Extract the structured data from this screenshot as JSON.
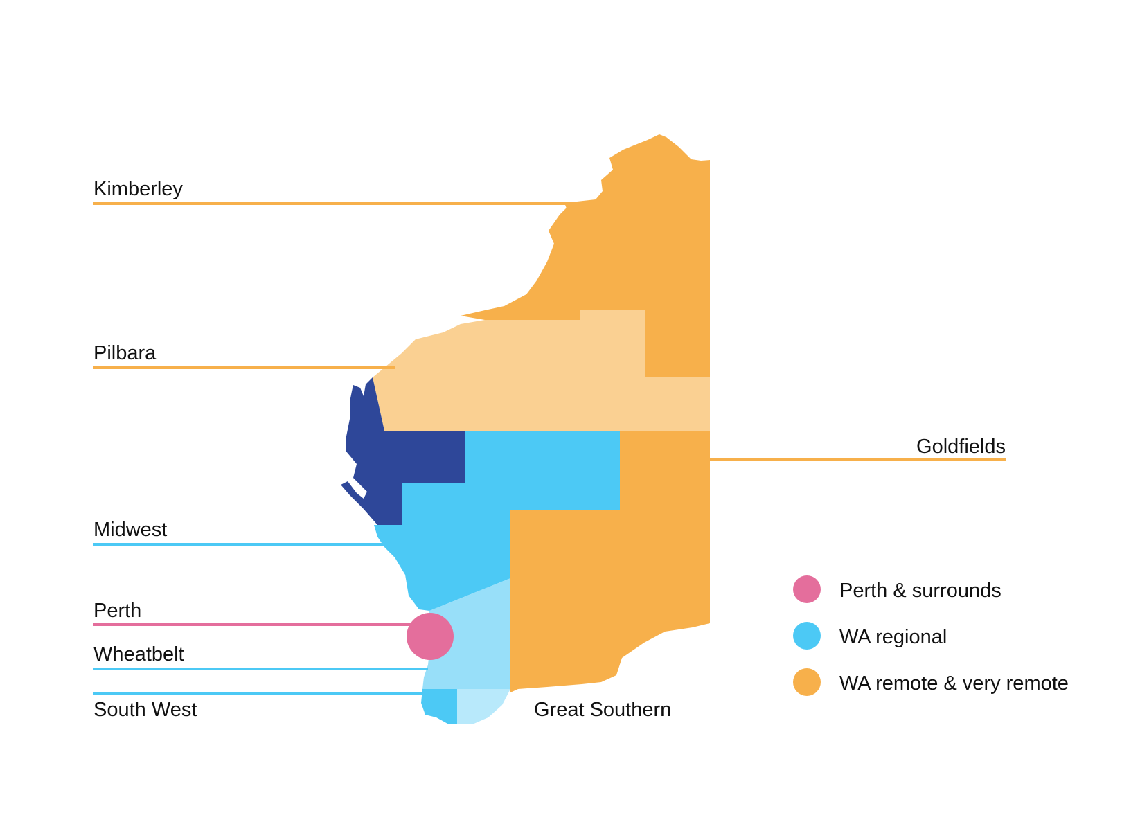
{
  "map": {
    "regions": [
      {
        "id": "kimberley",
        "label": "Kimberley",
        "category": "remote"
      },
      {
        "id": "pilbara",
        "label": "Pilbara",
        "category": "remote"
      },
      {
        "id": "goldfields",
        "label": "Goldfields",
        "category": "remote"
      },
      {
        "id": "midwest",
        "label": "Midwest",
        "category": "regional"
      },
      {
        "id": "perth",
        "label": "Perth",
        "category": "perth"
      },
      {
        "id": "wheatbelt",
        "label": "Wheatbelt",
        "category": "regional"
      },
      {
        "id": "south_west",
        "label": "South West",
        "category": "regional"
      },
      {
        "id": "great_southern",
        "label": "Great Southern",
        "category": "regional"
      }
    ]
  },
  "legend": {
    "items": [
      {
        "label": "Perth & surrounds",
        "color": "#e46e9c"
      },
      {
        "label": "WA regional",
        "color": "#4cc9f5"
      },
      {
        "label": "WA remote & very remote",
        "color": "#f7b04b"
      }
    ]
  },
  "colors": {
    "remote": "#f7b04b",
    "remote_light": "#fad092",
    "regional": "#4cc9f5",
    "regional_light": "#98dff9",
    "regional_lighter": "#b8e9fb",
    "gascoyne_dark": "#2e4799",
    "perth": "#e46e9c"
  }
}
